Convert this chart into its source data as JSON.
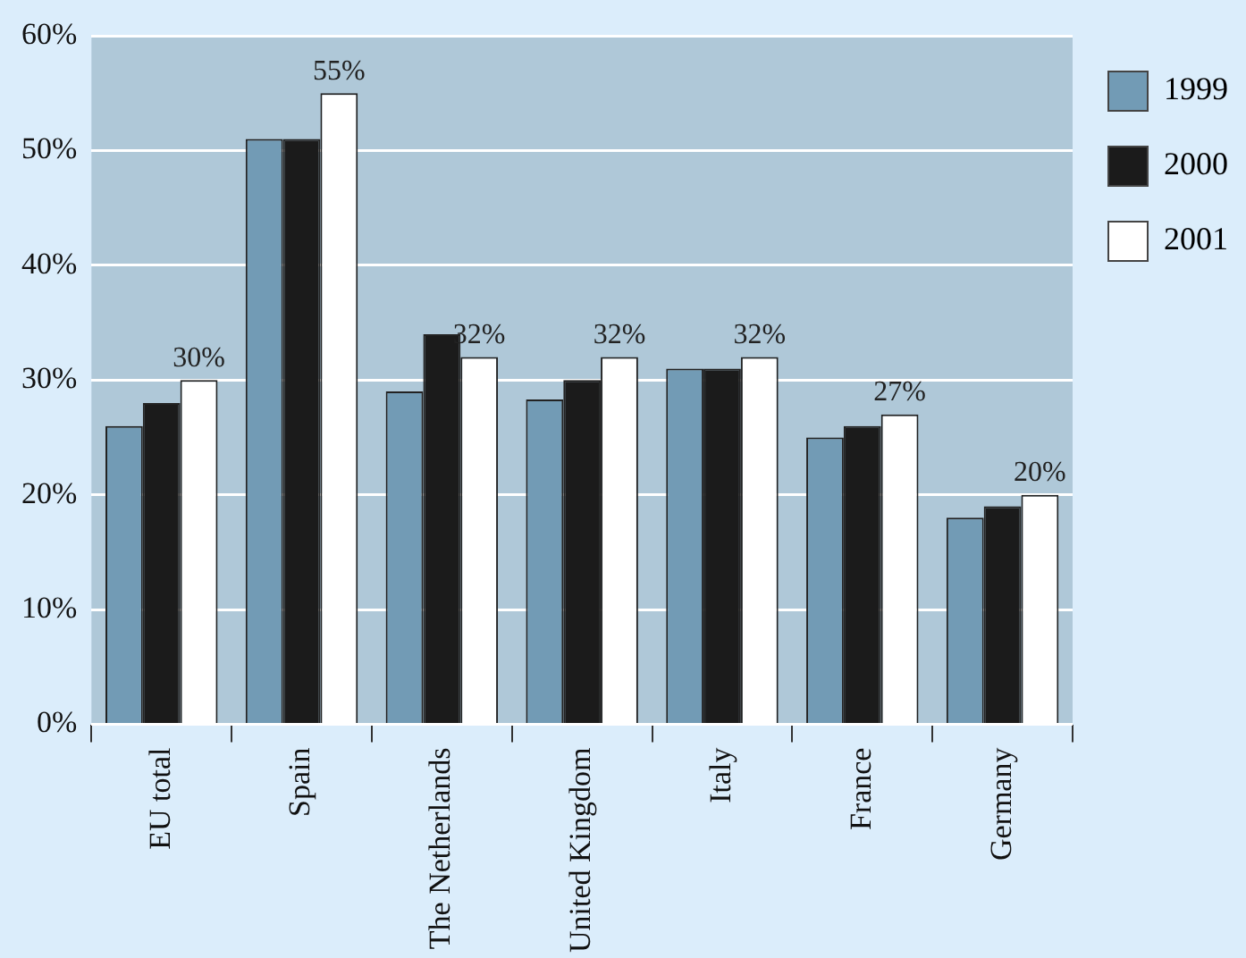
{
  "chart_data": {
    "type": "bar",
    "categories": [
      "EU total",
      "Spain",
      "The Netherlands",
      "United Kingdom",
      "Italy",
      "France",
      "Germany"
    ],
    "series": [
      {
        "name": "1999",
        "color": "#729bb5",
        "values": [
          26,
          51,
          29,
          28.3,
          31,
          25,
          18
        ]
      },
      {
        "name": "2000",
        "color": "#1b1b1b",
        "values": [
          28,
          51,
          34,
          30,
          31,
          26,
          19
        ]
      },
      {
        "name": "2001",
        "color": "#ffffff",
        "values": [
          30,
          55,
          32,
          32,
          32,
          27,
          20
        ],
        "value_labels": [
          "30%",
          "55%",
          "32%",
          "32%",
          "32%",
          "27%",
          "20%"
        ]
      }
    ],
    "ylim": [
      0,
      60
    ],
    "yticks": [
      {
        "value": 0,
        "label": "0%"
      },
      {
        "value": 10,
        "label": "10%"
      },
      {
        "value": 20,
        "label": "20%"
      },
      {
        "value": 30,
        "label": "30%"
      },
      {
        "value": 40,
        "label": "40%"
      },
      {
        "value": 50,
        "label": "50%"
      },
      {
        "value": 60,
        "label": "60%"
      }
    ],
    "grid": "y",
    "legend": "top right"
  }
}
